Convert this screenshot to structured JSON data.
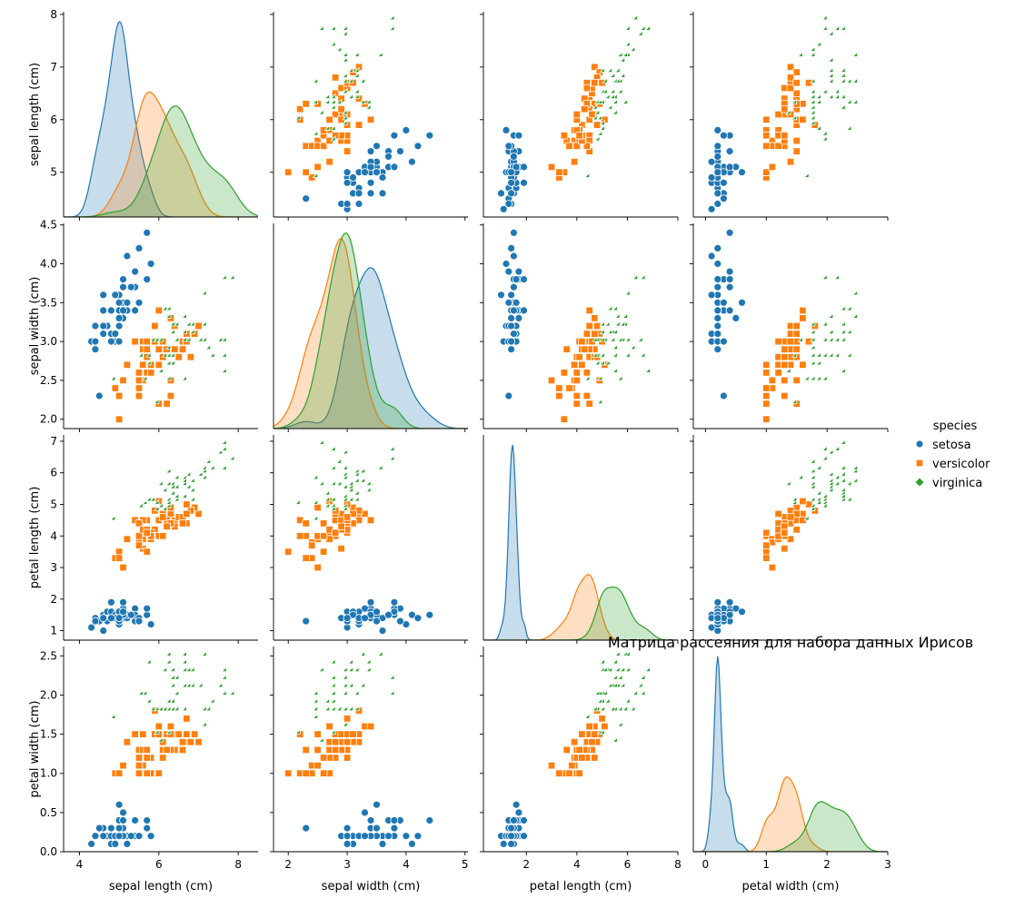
{
  "chart_data": {
    "type": "scatter",
    "title": "Матрица рассеяния для набора данных Ирисов",
    "kind": "pairplot",
    "variables": [
      "sepal length (cm)",
      "sepal width (cm)",
      "petal length (cm)",
      "petal width (cm)"
    ],
    "axis_ranges": [
      [
        3.6,
        8.5
      ],
      [
        1.75,
        5.05
      ],
      [
        0.3,
        8.0
      ],
      [
        -0.2,
        3.0
      ]
    ],
    "ticks": [
      [
        4,
        6,
        8
      ],
      [
        2,
        3,
        4,
        5
      ],
      [
        2,
        4,
        6,
        8
      ],
      [
        0,
        1,
        2,
        3
      ]
    ],
    "tick_labels": [
      [
        "4",
        "6",
        "8"
      ],
      [
        "2",
        "3",
        "4",
        "5"
      ],
      [
        "2",
        "4",
        "6",
        "8"
      ],
      [
        "0",
        "1",
        "2",
        "3"
      ]
    ],
    "ytick_labels": [
      [
        "5",
        "6",
        "7",
        "8"
      ],
      [
        "2.0",
        "2.5",
        "3.0",
        "3.5",
        "4.0",
        "4.5"
      ],
      [
        "1",
        "2",
        "3",
        "4",
        "5",
        "6",
        "7"
      ],
      [
        "0.0",
        "0.5",
        "1.0",
        "1.5",
        "2.0",
        "2.5"
      ]
    ],
    "ytick_values": [
      [
        5,
        6,
        7,
        8
      ],
      [
        2.0,
        2.5,
        3.0,
        3.5,
        4.0,
        4.5
      ],
      [
        1,
        2,
        3,
        4,
        5,
        6,
        7
      ],
      [
        0.0,
        0.5,
        1.0,
        1.5,
        2.0,
        2.5
      ]
    ],
    "ylims": [
      [
        4.15,
        8.05
      ],
      [
        1.88,
        4.52
      ],
      [
        0.7,
        7.2
      ],
      [
        -0.0,
        2.62
      ]
    ],
    "legend_title": "species",
    "legend_placement": "right",
    "grid": false,
    "diagonal": "kde",
    "series": [
      {
        "name": "setosa",
        "color": "#1f77b4",
        "marker": "circle",
        "points": [
          [
            5.1,
            3.5,
            1.4,
            0.2
          ],
          [
            4.9,
            3.0,
            1.4,
            0.2
          ],
          [
            4.7,
            3.2,
            1.3,
            0.2
          ],
          [
            4.6,
            3.1,
            1.5,
            0.2
          ],
          [
            5.0,
            3.6,
            1.4,
            0.2
          ],
          [
            5.4,
            3.9,
            1.7,
            0.4
          ],
          [
            4.6,
            3.4,
            1.4,
            0.3
          ],
          [
            5.0,
            3.4,
            1.5,
            0.2
          ],
          [
            4.4,
            2.9,
            1.4,
            0.2
          ],
          [
            4.9,
            3.1,
            1.5,
            0.1
          ],
          [
            5.4,
            3.7,
            1.5,
            0.2
          ],
          [
            4.8,
            3.4,
            1.6,
            0.2
          ],
          [
            4.8,
            3.0,
            1.4,
            0.1
          ],
          [
            4.3,
            3.0,
            1.1,
            0.1
          ],
          [
            5.8,
            4.0,
            1.2,
            0.2
          ],
          [
            5.7,
            4.4,
            1.5,
            0.4
          ],
          [
            5.4,
            3.9,
            1.3,
            0.4
          ],
          [
            5.1,
            3.5,
            1.4,
            0.3
          ],
          [
            5.7,
            3.8,
            1.7,
            0.3
          ],
          [
            5.1,
            3.8,
            1.5,
            0.3
          ],
          [
            5.4,
            3.4,
            1.7,
            0.2
          ],
          [
            5.1,
            3.7,
            1.5,
            0.4
          ],
          [
            4.6,
            3.6,
            1.0,
            0.2
          ],
          [
            5.1,
            3.3,
            1.7,
            0.5
          ],
          [
            4.8,
            3.4,
            1.9,
            0.2
          ],
          [
            5.0,
            3.0,
            1.6,
            0.2
          ],
          [
            5.0,
            3.4,
            1.6,
            0.4
          ],
          [
            5.2,
            3.5,
            1.5,
            0.2
          ],
          [
            5.2,
            3.4,
            1.4,
            0.2
          ],
          [
            4.7,
            3.2,
            1.6,
            0.2
          ],
          [
            4.8,
            3.1,
            1.6,
            0.2
          ],
          [
            5.4,
            3.4,
            1.5,
            0.4
          ],
          [
            5.2,
            4.1,
            1.5,
            0.1
          ],
          [
            5.5,
            4.2,
            1.4,
            0.2
          ],
          [
            4.9,
            3.1,
            1.5,
            0.2
          ],
          [
            5.0,
            3.2,
            1.2,
            0.2
          ],
          [
            5.5,
            3.5,
            1.3,
            0.2
          ],
          [
            4.9,
            3.6,
            1.4,
            0.1
          ],
          [
            4.4,
            3.0,
            1.3,
            0.2
          ],
          [
            5.1,
            3.4,
            1.5,
            0.2
          ],
          [
            5.0,
            3.5,
            1.3,
            0.3
          ],
          [
            4.5,
            2.3,
            1.3,
            0.3
          ],
          [
            4.4,
            3.2,
            1.3,
            0.2
          ],
          [
            5.0,
            3.5,
            1.6,
            0.6
          ],
          [
            5.1,
            3.8,
            1.9,
            0.4
          ],
          [
            4.8,
            3.0,
            1.4,
            0.3
          ],
          [
            5.1,
            3.8,
            1.6,
            0.2
          ],
          [
            4.6,
            3.2,
            1.4,
            0.2
          ],
          [
            5.3,
            3.7,
            1.5,
            0.2
          ],
          [
            5.0,
            3.3,
            1.4,
            0.2
          ]
        ]
      },
      {
        "name": "versicolor",
        "color": "#ff7f0e",
        "marker": "square",
        "points": [
          [
            7.0,
            3.2,
            4.7,
            1.4
          ],
          [
            6.4,
            3.2,
            4.5,
            1.5
          ],
          [
            6.9,
            3.1,
            4.9,
            1.5
          ],
          [
            5.5,
            2.3,
            4.0,
            1.3
          ],
          [
            6.5,
            2.8,
            4.6,
            1.5
          ],
          [
            5.7,
            2.8,
            4.5,
            1.3
          ],
          [
            6.3,
            3.3,
            4.7,
            1.6
          ],
          [
            4.9,
            2.4,
            3.3,
            1.0
          ],
          [
            6.6,
            2.9,
            4.6,
            1.3
          ],
          [
            5.2,
            2.7,
            3.9,
            1.4
          ],
          [
            5.0,
            2.0,
            3.5,
            1.0
          ],
          [
            5.9,
            3.0,
            4.2,
            1.5
          ],
          [
            6.0,
            2.2,
            4.0,
            1.0
          ],
          [
            6.1,
            2.9,
            4.7,
            1.4
          ],
          [
            5.6,
            2.9,
            3.6,
            1.3
          ],
          [
            6.7,
            3.1,
            4.4,
            1.4
          ],
          [
            5.6,
            3.0,
            4.5,
            1.5
          ],
          [
            5.8,
            2.7,
            4.1,
            1.0
          ],
          [
            6.2,
            2.2,
            4.5,
            1.5
          ],
          [
            5.6,
            2.5,
            3.9,
            1.1
          ],
          [
            5.9,
            3.2,
            4.8,
            1.8
          ],
          [
            6.1,
            2.8,
            4.0,
            1.3
          ],
          [
            6.3,
            2.5,
            4.9,
            1.5
          ],
          [
            6.1,
            2.8,
            4.7,
            1.2
          ],
          [
            6.4,
            2.9,
            4.3,
            1.3
          ],
          [
            6.6,
            3.0,
            4.4,
            1.4
          ],
          [
            6.8,
            2.8,
            4.8,
            1.4
          ],
          [
            6.7,
            3.0,
            5.0,
            1.7
          ],
          [
            6.0,
            2.9,
            4.5,
            1.5
          ],
          [
            5.7,
            2.6,
            3.5,
            1.0
          ],
          [
            5.5,
            2.4,
            3.8,
            1.1
          ],
          [
            5.5,
            2.4,
            3.7,
            1.0
          ],
          [
            5.8,
            2.7,
            3.9,
            1.2
          ],
          [
            6.0,
            2.7,
            5.1,
            1.6
          ],
          [
            5.4,
            3.0,
            4.5,
            1.5
          ],
          [
            6.0,
            3.4,
            4.5,
            1.6
          ],
          [
            6.7,
            3.1,
            4.7,
            1.5
          ],
          [
            6.3,
            2.3,
            4.4,
            1.3
          ],
          [
            5.6,
            3.0,
            4.1,
            1.3
          ],
          [
            5.5,
            2.5,
            4.0,
            1.3
          ],
          [
            5.5,
            2.6,
            4.4,
            1.2
          ],
          [
            6.1,
            3.0,
            4.6,
            1.4
          ],
          [
            5.8,
            2.6,
            4.0,
            1.2
          ],
          [
            5.0,
            2.3,
            3.3,
            1.0
          ],
          [
            5.6,
            2.7,
            4.2,
            1.3
          ],
          [
            5.7,
            3.0,
            4.2,
            1.2
          ],
          [
            5.7,
            2.9,
            4.2,
            1.3
          ],
          [
            6.2,
            2.9,
            4.3,
            1.3
          ],
          [
            5.1,
            2.5,
            3.0,
            1.1
          ],
          [
            5.7,
            2.8,
            4.1,
            1.3
          ]
        ]
      },
      {
        "name": "virginica",
        "color": "#2ca02c",
        "marker": "diamond",
        "points": [
          [
            6.3,
            3.3,
            6.0,
            2.5
          ],
          [
            5.8,
            2.7,
            5.1,
            1.9
          ],
          [
            7.1,
            3.0,
            5.9,
            2.1
          ],
          [
            6.3,
            2.9,
            5.6,
            1.8
          ],
          [
            6.5,
            3.0,
            5.8,
            2.2
          ],
          [
            7.6,
            3.0,
            6.6,
            2.1
          ],
          [
            4.9,
            2.5,
            4.5,
            1.7
          ],
          [
            7.3,
            2.9,
            6.3,
            1.8
          ],
          [
            6.7,
            2.5,
            5.8,
            1.8
          ],
          [
            7.2,
            3.6,
            6.1,
            2.5
          ],
          [
            6.5,
            3.2,
            5.1,
            2.0
          ],
          [
            6.4,
            2.7,
            5.3,
            1.9
          ],
          [
            6.8,
            3.0,
            5.5,
            2.1
          ],
          [
            5.7,
            2.5,
            5.0,
            2.0
          ],
          [
            5.8,
            2.8,
            5.1,
            2.4
          ],
          [
            6.4,
            3.2,
            5.3,
            2.3
          ],
          [
            6.5,
            3.0,
            5.5,
            1.8
          ],
          [
            7.7,
            3.8,
            6.7,
            2.2
          ],
          [
            7.7,
            2.6,
            6.9,
            2.3
          ],
          [
            6.0,
            2.2,
            5.0,
            1.5
          ],
          [
            6.9,
            3.2,
            5.7,
            2.3
          ],
          [
            5.6,
            2.8,
            4.9,
            2.0
          ],
          [
            7.7,
            2.8,
            6.7,
            2.0
          ],
          [
            6.3,
            2.7,
            4.9,
            1.8
          ],
          [
            6.7,
            3.3,
            5.7,
            2.1
          ],
          [
            7.2,
            3.2,
            6.0,
            1.8
          ],
          [
            6.2,
            2.8,
            4.8,
            1.8
          ],
          [
            6.1,
            3.0,
            4.9,
            1.8
          ],
          [
            6.4,
            2.8,
            5.6,
            2.1
          ],
          [
            7.2,
            3.0,
            5.8,
            1.6
          ],
          [
            7.4,
            2.8,
            6.1,
            1.9
          ],
          [
            7.9,
            3.8,
            6.4,
            2.0
          ],
          [
            6.4,
            2.8,
            5.6,
            2.2
          ],
          [
            6.3,
            2.8,
            5.1,
            1.5
          ],
          [
            6.1,
            2.6,
            5.6,
            1.4
          ],
          [
            7.7,
            3.0,
            6.1,
            2.3
          ],
          [
            6.3,
            3.4,
            5.6,
            2.4
          ],
          [
            6.4,
            3.1,
            5.5,
            1.8
          ],
          [
            6.0,
            3.0,
            4.8,
            1.8
          ],
          [
            6.9,
            3.1,
            5.4,
            2.1
          ],
          [
            6.7,
            3.1,
            5.6,
            2.4
          ],
          [
            6.9,
            3.1,
            5.1,
            2.3
          ],
          [
            5.8,
            2.7,
            5.1,
            1.9
          ],
          [
            6.8,
            3.2,
            5.9,
            2.3
          ],
          [
            6.7,
            3.3,
            5.7,
            2.5
          ],
          [
            6.7,
            3.0,
            5.2,
            2.3
          ],
          [
            6.3,
            2.5,
            5.0,
            1.9
          ],
          [
            6.5,
            3.0,
            5.2,
            2.0
          ],
          [
            6.2,
            3.4,
            5.4,
            2.3
          ],
          [
            5.9,
            3.0,
            5.1,
            1.8
          ]
        ]
      }
    ]
  }
}
